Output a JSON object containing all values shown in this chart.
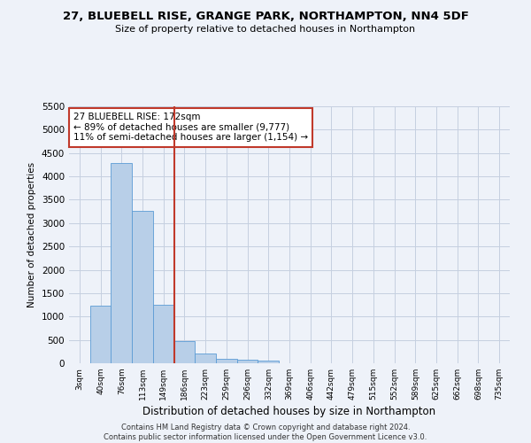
{
  "title_line1": "27, BLUEBELL RISE, GRANGE PARK, NORTHAMPTON, NN4 5DF",
  "title_line2": "Size of property relative to detached houses in Northampton",
  "xlabel": "Distribution of detached houses by size in Northampton",
  "ylabel": "Number of detached properties",
  "bar_labels": [
    "3sqm",
    "40sqm",
    "76sqm",
    "113sqm",
    "149sqm",
    "186sqm",
    "223sqm",
    "259sqm",
    "296sqm",
    "332sqm",
    "369sqm",
    "406sqm",
    "442sqm",
    "479sqm",
    "515sqm",
    "552sqm",
    "589sqm",
    "625sqm",
    "662sqm",
    "698sqm",
    "735sqm"
  ],
  "bar_values": [
    0,
    1230,
    4280,
    3270,
    1260,
    470,
    200,
    100,
    70,
    50,
    0,
    0,
    0,
    0,
    0,
    0,
    0,
    0,
    0,
    0,
    0
  ],
  "bar_color": "#b8cfe8",
  "bar_edgecolor": "#5b9bd5",
  "vline_x": 4.5,
  "vline_color": "#c0392b",
  "annotation_text": "27 BLUEBELL RISE: 172sqm\n← 89% of detached houses are smaller (9,777)\n11% of semi-detached houses are larger (1,154) →",
  "annotation_box_color": "white",
  "annotation_box_edgecolor": "#c0392b",
  "ylim": [
    0,
    5500
  ],
  "yticks": [
    0,
    500,
    1000,
    1500,
    2000,
    2500,
    3000,
    3500,
    4000,
    4500,
    5000,
    5500
  ],
  "footer_text": "Contains HM Land Registry data © Crown copyright and database right 2024.\nContains public sector information licensed under the Open Government Licence v3.0.",
  "bg_color": "#eef2f9",
  "grid_color": "#c5cfe0"
}
